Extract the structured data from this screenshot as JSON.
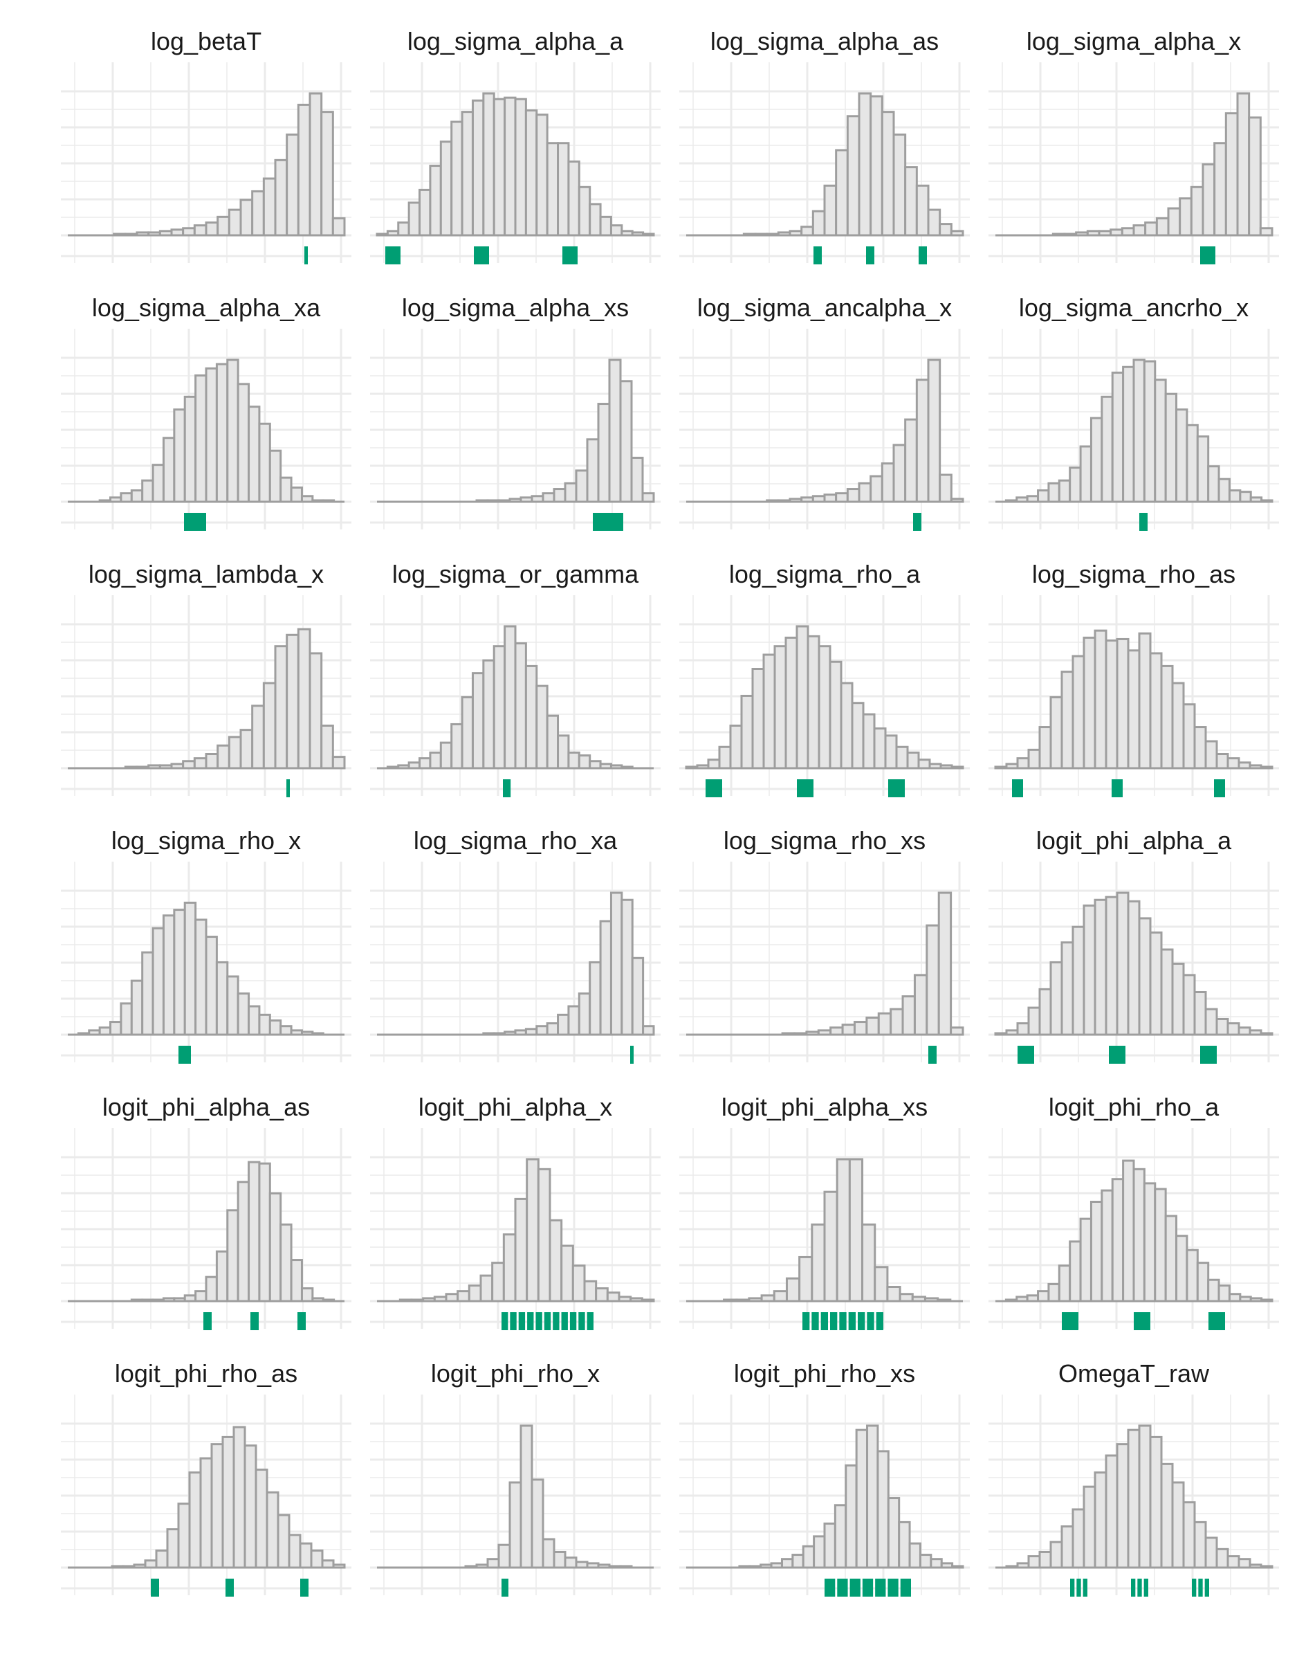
{
  "figure": {
    "layout": {
      "rows": 6,
      "cols": 4
    },
    "colors": {
      "bar_fill": "#e6e6e6",
      "bar_stroke": "#9e9e9e",
      "grid": "#ebebeb",
      "rug": "#009e73",
      "baseline": "#9e9e9e"
    }
  },
  "chart_data": [
    {
      "type": "bar",
      "title": "log_betaT",
      "series": [
        {
          "values": [
            0,
            0,
            0,
            0,
            0.01,
            0.01,
            0.02,
            0.02,
            0.03,
            0.04,
            0.05,
            0.07,
            0.09,
            0.13,
            0.18,
            0.25,
            0.31,
            0.4,
            0.53,
            0.71,
            0.92,
            1.0,
            0.87,
            0.12
          ]
        }
      ],
      "rug": [
        {
          "pos": 0.855,
          "width": 0.008
        }
      ]
    },
    {
      "type": "bar",
      "title": "log_sigma_alpha_a",
      "series": [
        {
          "values": [
            0.01,
            0.03,
            0.09,
            0.23,
            0.32,
            0.49,
            0.66,
            0.8,
            0.87,
            0.95,
            1.0,
            0.96,
            0.97,
            0.96,
            0.88,
            0.85,
            0.65,
            0.65,
            0.52,
            0.34,
            0.22,
            0.13,
            0.07,
            0.03,
            0.02,
            0.01
          ]
        }
      ],
      "rug": [
        {
          "pos": 0.03,
          "width": 0.055
        },
        {
          "pos": 0.35,
          "width": 0.055
        },
        {
          "pos": 0.67,
          "width": 0.055
        }
      ]
    },
    {
      "type": "bar",
      "title": "log_sigma_alpha_as",
      "series": [
        {
          "values": [
            0,
            0,
            0,
            0,
            0,
            0.01,
            0.01,
            0.01,
            0.02,
            0.03,
            0.06,
            0.17,
            0.35,
            0.6,
            0.84,
            1.0,
            0.98,
            0.87,
            0.71,
            0.48,
            0.35,
            0.18,
            0.08,
            0.03
          ]
        }
      ],
      "rug": [
        {
          "pos": 0.46,
          "width": 0.03
        },
        {
          "pos": 0.65,
          "width": 0.03
        },
        {
          "pos": 0.84,
          "width": 0.03
        }
      ]
    },
    {
      "type": "bar",
      "title": "log_sigma_alpha_x",
      "series": [
        {
          "values": [
            0,
            0,
            0,
            0,
            0,
            0.01,
            0.01,
            0.02,
            0.03,
            0.03,
            0.04,
            0.05,
            0.07,
            0.09,
            0.12,
            0.19,
            0.26,
            0.34,
            0.5,
            0.65,
            0.86,
            1.0,
            0.83,
            0.05
          ]
        }
      ],
      "rug": [
        {
          "pos": 0.74,
          "width": 0.055
        }
      ]
    },
    {
      "type": "bar",
      "title": "log_sigma_alpha_xa",
      "series": [
        {
          "values": [
            0,
            0,
            0,
            0.01,
            0.03,
            0.06,
            0.08,
            0.15,
            0.26,
            0.45,
            0.65,
            0.74,
            0.89,
            0.94,
            0.97,
            1.0,
            0.83,
            0.67,
            0.55,
            0.36,
            0.17,
            0.1,
            0.04,
            0.01,
            0.01,
            0
          ]
        }
      ],
      "rug": [
        {
          "pos": 0.42,
          "width": 0.08
        }
      ]
    },
    {
      "type": "bar",
      "title": "log_sigma_alpha_xs",
      "series": [
        {
          "values": [
            0,
            0,
            0,
            0,
            0,
            0,
            0,
            0,
            0,
            0.01,
            0.01,
            0.01,
            0.02,
            0.03,
            0.04,
            0.06,
            0.09,
            0.13,
            0.22,
            0.44,
            0.69,
            1.0,
            0.85,
            0.31,
            0.06
          ]
        }
      ],
      "rug": [
        {
          "pos": 0.78,
          "width": 0.11
        }
      ]
    },
    {
      "type": "bar",
      "title": "log_sigma_ancalpha_x",
      "series": [
        {
          "values": [
            0,
            0,
            0,
            0,
            0,
            0,
            0,
            0.01,
            0.01,
            0.02,
            0.03,
            0.04,
            0.05,
            0.06,
            0.09,
            0.13,
            0.18,
            0.27,
            0.4,
            0.58,
            0.86,
            1.0,
            0.19,
            0.02
          ]
        }
      ],
      "rug": [
        {
          "pos": 0.82,
          "width": 0.03
        }
      ]
    },
    {
      "type": "bar",
      "title": "log_sigma_ancrho_x",
      "series": [
        {
          "values": [
            0,
            0.01,
            0.03,
            0.04,
            0.08,
            0.13,
            0.15,
            0.24,
            0.39,
            0.59,
            0.74,
            0.91,
            0.95,
            1.0,
            0.99,
            0.86,
            0.76,
            0.65,
            0.54,
            0.46,
            0.25,
            0.16,
            0.08,
            0.07,
            0.03,
            0.01
          ]
        }
      ],
      "rug": [
        {
          "pos": 0.52,
          "width": 0.03
        }
      ]
    },
    {
      "type": "bar",
      "title": "log_sigma_lambda_x",
      "series": [
        {
          "values": [
            0,
            0,
            0,
            0,
            0,
            0.01,
            0.01,
            0.02,
            0.02,
            0.03,
            0.05,
            0.07,
            0.1,
            0.16,
            0.22,
            0.27,
            0.44,
            0.6,
            0.86,
            0.94,
            0.98,
            0.81,
            0.3,
            0.08
          ]
        }
      ],
      "rug": [
        {
          "pos": 0.79,
          "width": 0.012
        }
      ]
    },
    {
      "type": "bar",
      "title": "log_sigma_or_gamma",
      "series": [
        {
          "values": [
            0,
            0.01,
            0.02,
            0.04,
            0.07,
            0.11,
            0.18,
            0.31,
            0.5,
            0.67,
            0.76,
            0.86,
            1.0,
            0.88,
            0.72,
            0.58,
            0.37,
            0.23,
            0.11,
            0.09,
            0.05,
            0.03,
            0.02,
            0.01,
            0,
            0
          ]
        }
      ],
      "rug": [
        {
          "pos": 0.455,
          "width": 0.028
        }
      ]
    },
    {
      "type": "bar",
      "title": "log_sigma_rho_a",
      "series": [
        {
          "values": [
            0.01,
            0.02,
            0.06,
            0.15,
            0.3,
            0.51,
            0.7,
            0.8,
            0.86,
            0.92,
            1.0,
            0.93,
            0.86,
            0.75,
            0.6,
            0.46,
            0.38,
            0.28,
            0.23,
            0.15,
            0.11,
            0.06,
            0.03,
            0.02,
            0.01
          ]
        }
      ],
      "rug": [
        {
          "pos": 0.07,
          "width": 0.06
        },
        {
          "pos": 0.4,
          "width": 0.06
        },
        {
          "pos": 0.73,
          "width": 0.06
        }
      ]
    },
    {
      "type": "bar",
      "title": "log_sigma_rho_as",
      "series": [
        {
          "values": [
            0.01,
            0.03,
            0.07,
            0.13,
            0.29,
            0.5,
            0.68,
            0.79,
            0.92,
            0.97,
            0.9,
            0.91,
            0.83,
            0.95,
            0.81,
            0.72,
            0.6,
            0.45,
            0.29,
            0.19,
            0.1,
            0.07,
            0.04,
            0.02,
            0.01
          ]
        }
      ],
      "rug": [
        {
          "pos": 0.06,
          "width": 0.04
        },
        {
          "pos": 0.42,
          "width": 0.04
        },
        {
          "pos": 0.79,
          "width": 0.04
        }
      ]
    },
    {
      "type": "bar",
      "title": "log_sigma_rho_x",
      "series": [
        {
          "values": [
            0,
            0.01,
            0.03,
            0.05,
            0.09,
            0.22,
            0.38,
            0.58,
            0.75,
            0.84,
            0.88,
            0.93,
            0.81,
            0.69,
            0.51,
            0.41,
            0.29,
            0.2,
            0.14,
            0.1,
            0.06,
            0.03,
            0.02,
            0.01,
            0,
            0
          ]
        }
      ],
      "rug": [
        {
          "pos": 0.4,
          "width": 0.045
        }
      ]
    },
    {
      "type": "bar",
      "title": "log_sigma_rho_xa",
      "series": [
        {
          "values": [
            0,
            0,
            0,
            0,
            0,
            0,
            0,
            0,
            0,
            0,
            0.01,
            0.01,
            0.02,
            0.03,
            0.04,
            0.06,
            0.08,
            0.14,
            0.2,
            0.29,
            0.51,
            0.8,
            1.0,
            0.95,
            0.54,
            0.06
          ]
        }
      ],
      "rug": [
        {
          "pos": 0.915,
          "width": 0.01
        }
      ]
    },
    {
      "type": "bar",
      "title": "log_sigma_rho_xs",
      "series": [
        {
          "values": [
            0,
            0,
            0,
            0,
            0,
            0,
            0,
            0,
            0.01,
            0.01,
            0.02,
            0.03,
            0.05,
            0.07,
            0.09,
            0.12,
            0.15,
            0.18,
            0.27,
            0.42,
            0.77,
            1.0,
            0.05
          ]
        }
      ],
      "rug": [
        {
          "pos": 0.875,
          "width": 0.03
        }
      ]
    },
    {
      "type": "bar",
      "title": "logit_phi_alpha_a",
      "series": [
        {
          "values": [
            0.01,
            0.03,
            0.08,
            0.19,
            0.32,
            0.51,
            0.65,
            0.76,
            0.91,
            0.95,
            0.97,
            1.0,
            0.94,
            0.82,
            0.72,
            0.6,
            0.5,
            0.42,
            0.3,
            0.18,
            0.11,
            0.08,
            0.05,
            0.03,
            0.01
          ]
        }
      ],
      "rug": [
        {
          "pos": 0.08,
          "width": 0.06
        },
        {
          "pos": 0.41,
          "width": 0.06
        },
        {
          "pos": 0.74,
          "width": 0.06
        }
      ]
    },
    {
      "type": "bar",
      "title": "logit_phi_alpha_as",
      "series": [
        {
          "values": [
            0,
            0,
            0,
            0,
            0,
            0,
            0.01,
            0.01,
            0.01,
            0.02,
            0.02,
            0.04,
            0.07,
            0.17,
            0.35,
            0.64,
            0.84,
            0.98,
            0.97,
            0.76,
            0.54,
            0.29,
            0.09,
            0.02,
            0.01,
            0
          ]
        }
      ],
      "rug": [
        {
          "pos": 0.49,
          "width": 0.03
        },
        {
          "pos": 0.66,
          "width": 0.03
        },
        {
          "pos": 0.83,
          "width": 0.03
        }
      ]
    },
    {
      "type": "bar",
      "title": "logit_phi_alpha_x",
      "series": [
        {
          "values": [
            0,
            0,
            0.01,
            0.01,
            0.02,
            0.03,
            0.05,
            0.07,
            0.11,
            0.18,
            0.27,
            0.47,
            0.72,
            1.0,
            0.93,
            0.57,
            0.39,
            0.25,
            0.14,
            0.09,
            0.06,
            0.03,
            0.02,
            0.01
          ]
        }
      ],
      "rug": [
        {
          "pos": 0.45,
          "width": 0.34,
          "ticks": 11
        }
      ]
    },
    {
      "type": "bar",
      "title": "logit_phi_alpha_xs",
      "series": [
        {
          "values": [
            0,
            0,
            0,
            0.01,
            0.01,
            0.02,
            0.04,
            0.07,
            0.16,
            0.31,
            0.54,
            0.77,
            1.0,
            1.0,
            0.54,
            0.24,
            0.1,
            0.05,
            0.03,
            0.02,
            0.01,
            0
          ]
        }
      ],
      "rug": [
        {
          "pos": 0.42,
          "width": 0.3,
          "ticks": 9
        }
      ]
    },
    {
      "type": "bar",
      "title": "logit_phi_rho_a",
      "series": [
        {
          "values": [
            0,
            0.01,
            0.03,
            0.04,
            0.07,
            0.12,
            0.25,
            0.42,
            0.58,
            0.7,
            0.78,
            0.86,
            0.99,
            0.93,
            0.83,
            0.79,
            0.6,
            0.46,
            0.36,
            0.27,
            0.15,
            0.11,
            0.05,
            0.03,
            0.02,
            0.01
          ]
        }
      ],
      "rug": [
        {
          "pos": 0.24,
          "width": 0.06
        },
        {
          "pos": 0.5,
          "width": 0.06
        },
        {
          "pos": 0.77,
          "width": 0.06
        }
      ]
    },
    {
      "type": "bar",
      "title": "logit_phi_rho_as",
      "series": [
        {
          "values": [
            0,
            0,
            0,
            0,
            0.01,
            0.01,
            0.02,
            0.05,
            0.12,
            0.27,
            0.45,
            0.67,
            0.77,
            0.87,
            0.92,
            0.99,
            0.86,
            0.69,
            0.53,
            0.37,
            0.23,
            0.17,
            0.12,
            0.05,
            0.02
          ]
        }
      ],
      "rug": [
        {
          "pos": 0.3,
          "width": 0.03
        },
        {
          "pos": 0.57,
          "width": 0.03
        },
        {
          "pos": 0.84,
          "width": 0.03
        }
      ]
    },
    {
      "type": "bar",
      "title": "logit_phi_rho_x",
      "series": [
        {
          "values": [
            0,
            0,
            0,
            0,
            0,
            0,
            0,
            0,
            0.01,
            0.02,
            0.06,
            0.16,
            0.6,
            1.0,
            0.62,
            0.2,
            0.11,
            0.07,
            0.04,
            0.03,
            0.02,
            0.01,
            0.01,
            0,
            0
          ]
        }
      ],
      "rug": [
        {
          "pos": 0.45,
          "width": 0.025
        }
      ]
    },
    {
      "type": "bar",
      "title": "logit_phi_rho_xs",
      "series": [
        {
          "values": [
            0,
            0,
            0,
            0,
            0,
            0.01,
            0.01,
            0.02,
            0.03,
            0.06,
            0.09,
            0.15,
            0.22,
            0.31,
            0.44,
            0.72,
            0.97,
            1.0,
            0.82,
            0.49,
            0.32,
            0.17,
            0.09,
            0.06,
            0.03,
            0.01
          ]
        }
      ],
      "rug": [
        {
          "pos": 0.5,
          "width": 0.32,
          "ticks": 7
        }
      ]
    },
    {
      "type": "bar",
      "title": "OmegaT_raw",
      "series": [
        {
          "values": [
            0,
            0.01,
            0.03,
            0.08,
            0.11,
            0.18,
            0.29,
            0.41,
            0.57,
            0.67,
            0.79,
            0.87,
            0.97,
            1.0,
            0.92,
            0.73,
            0.6,
            0.46,
            0.32,
            0.21,
            0.13,
            0.08,
            0.06,
            0.02,
            0.01
          ]
        }
      ],
      "rug": [
        {
          "pos": 0.27,
          "width": 0.07,
          "ticks": 3
        },
        {
          "pos": 0.49,
          "width": 0.07,
          "ticks": 3
        },
        {
          "pos": 0.71,
          "width": 0.07,
          "ticks": 3
        }
      ]
    }
  ]
}
